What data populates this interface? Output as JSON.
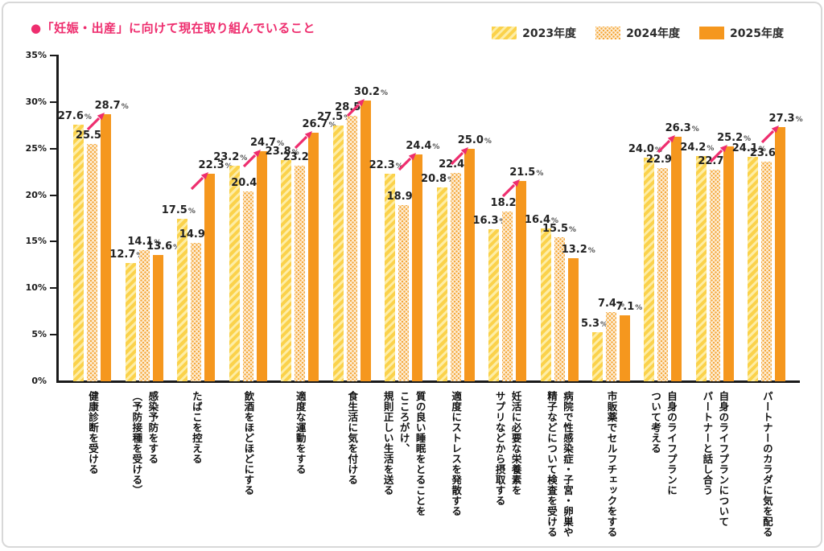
{
  "title": {
    "text": "●「妊娠・出産」に向けて現在取り組んでいること",
    "color": "#EE2D6E"
  },
  "colors": {
    "accent_pink": "#EE2D6E",
    "bar_2023_base": "#FBD24B",
    "bar_2023_stripe": "#FDEDA6",
    "bar_2024_dot": "#F5A83C",
    "bar_2024_bg": "#FDF0DB",
    "bar_2025": "#F5971E",
    "axis": "#1A1A1A",
    "card_border": "#D8D8D8"
  },
  "chart_data": {
    "type": "bar",
    "title": "「妊娠・出産」に向けて現在取り組んでいること",
    "unit": "%",
    "ylim": [
      0,
      35
    ],
    "yticks": [
      "0%",
      "5%",
      "10%",
      "15%",
      "20%",
      "25%",
      "30%",
      "35%"
    ],
    "grid": false,
    "legend_position": "top-right",
    "series": [
      {
        "name": "2023年度",
        "values": [
          27.6,
          12.7,
          17.5,
          23.2,
          23.8,
          27.5,
          22.3,
          20.8,
          16.3,
          16.4,
          5.3,
          24.0,
          24.2,
          24.1
        ]
      },
      {
        "name": "2024年度",
        "values": [
          25.5,
          14.1,
          14.9,
          20.4,
          23.2,
          28.5,
          18.9,
          22.4,
          18.2,
          15.5,
          7.4,
          22.9,
          22.7,
          23.6
        ]
      },
      {
        "name": "2025年度",
        "values": [
          28.7,
          13.6,
          22.3,
          24.7,
          26.7,
          30.2,
          24.4,
          25.0,
          21.5,
          13.2,
          7.1,
          26.3,
          25.2,
          27.3
        ]
      }
    ],
    "categories": [
      "健康診断を受ける",
      "感染予防をする（予防接種を受ける）",
      "たばこを控える",
      "飲酒をほどほどにする",
      "適度な運動をする",
      "食生活に気を付ける",
      "質の良い睡眠をとることをこころがけ、規則正しい生活を送る",
      "適度にストレスを発散する",
      "妊活に必要な栄養素をサプリなどから摂取する",
      "病院で性感染症・子宮・卵巣や精子などについて検査を受ける",
      "市販薬でセルフチェックをする",
      "自身のライフプランについて考える",
      "自身のライフプランについてパートナーと話し合う",
      "パートナーのカラダに気を配る"
    ],
    "groups": [
      {
        "lines": [
          "健康診断を受ける"
        ],
        "values": [
          27.6,
          25.5,
          28.7
        ],
        "arrow": true
      },
      {
        "lines": [
          "感染予防をする",
          "（予防接種を受ける）"
        ],
        "values": [
          12.7,
          14.1,
          13.6
        ],
        "arrow": false
      },
      {
        "lines": [
          "たばこを控える"
        ],
        "values": [
          17.5,
          14.9,
          22.3
        ],
        "arrow": true
      },
      {
        "lines": [
          "飲酒をほどほどにする"
        ],
        "values": [
          23.2,
          20.4,
          24.7
        ],
        "arrow": true
      },
      {
        "lines": [
          "適度な運動をする"
        ],
        "values": [
          23.8,
          23.2,
          26.7
        ],
        "arrow": true
      },
      {
        "lines": [
          "食生活に気を付ける"
        ],
        "values": [
          27.5,
          28.5,
          30.2
        ],
        "arrow": true
      },
      {
        "lines": [
          "質の良い睡眠をとることを",
          "こころがけ、",
          "規則正しい生活を送る"
        ],
        "values": [
          22.3,
          18.9,
          24.4
        ],
        "arrow": true
      },
      {
        "lines": [
          "適度にストレスを発散する"
        ],
        "values": [
          20.8,
          22.4,
          25.0
        ],
        "arrow": true
      },
      {
        "lines": [
          "妊活に必要な栄養素を",
          "サプリなどから摂取する"
        ],
        "values": [
          16.3,
          18.2,
          21.5
        ],
        "arrow": true
      },
      {
        "lines": [
          "病院で性感染症・子宮・卵巣や",
          "精子などについて検査を受ける"
        ],
        "values": [
          16.4,
          15.5,
          13.2
        ],
        "arrow": false
      },
      {
        "lines": [
          "市販薬でセルフチェックをする"
        ],
        "values": [
          5.3,
          7.4,
          7.1
        ],
        "arrow": false
      },
      {
        "lines": [
          "自身のライフプランに",
          "ついて考える"
        ],
        "values": [
          24.0,
          22.9,
          26.3
        ],
        "arrow": true
      },
      {
        "lines": [
          "自身のライフプランについて",
          "パートナーと話し合う"
        ],
        "values": [
          24.2,
          22.7,
          25.2
        ],
        "arrow": true
      },
      {
        "lines": [
          "パートナーのカラダに気を配る"
        ],
        "values": [
          24.1,
          23.6,
          27.3
        ],
        "arrow": true
      }
    ]
  }
}
